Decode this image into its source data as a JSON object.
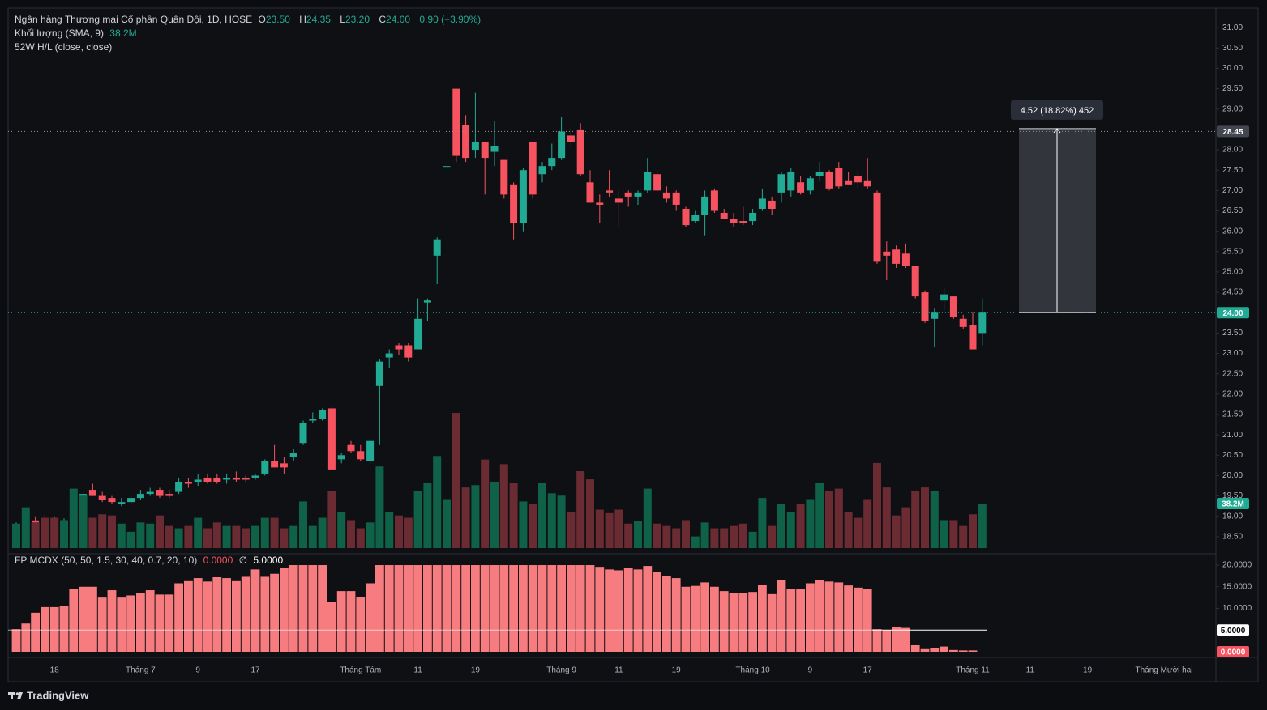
{
  "chart_data": [
    {
      "type": "candlestick",
      "title": "Ngân hàng Thương mại Cổ phần Quân Đội, 1D, HOSE",
      "header": [
        {
          "label": "O",
          "value": "23.50"
        },
        {
          "label": "H",
          "value": "24.35"
        },
        {
          "label": "L",
          "value": "23.20"
        },
        {
          "label": "C",
          "value": "24.00"
        }
      ],
      "change": "0.90 (+3.90%)",
      "study": "52W H/L (close, close)",
      "up_color": "#22ab94",
      "down_color": "#f7525f",
      "categories": [
        null,
        null,
        null,
        null,
        "18",
        null,
        null,
        null,
        null,
        null,
        null,
        null,
        null,
        "Tháng 7",
        null,
        null,
        null,
        null,
        null,
        "9",
        null,
        null,
        null,
        null,
        null,
        "17",
        null,
        null,
        null,
        null,
        null,
        null,
        null,
        null,
        null,
        null,
        "Tháng Tám",
        null,
        null,
        null,
        null,
        null,
        "11",
        null,
        null,
        null,
        null,
        null,
        "19",
        null,
        null,
        null,
        null,
        null,
        null,
        null,
        null,
        "Tháng 9",
        null,
        null,
        null,
        null,
        null,
        "11",
        null,
        null,
        null,
        null,
        null,
        "19",
        null,
        null,
        null,
        null,
        null,
        null,
        null,
        "Tháng 10",
        null,
        null,
        null,
        null,
        null,
        "9",
        null,
        null,
        null,
        null,
        null,
        "17",
        null,
        null,
        null,
        null,
        null,
        null,
        null,
        null,
        null,
        null,
        "Tháng 11",
        null,
        null,
        null,
        null,
        null,
        "11",
        null,
        null,
        null,
        null,
        null,
        "19",
        null,
        null,
        null,
        null,
        null,
        null,
        null,
        "Tháng Mười hai"
      ],
      "open": [
        18.7,
        18.8,
        18.9,
        18.95,
        18.9,
        18.8,
        18.85,
        19.3,
        19.65,
        19.5,
        19.45,
        19.3,
        19.35,
        19.45,
        19.55,
        19.65,
        19.55,
        19.6,
        19.85,
        19.85,
        19.95,
        19.95,
        19.9,
        19.95,
        19.95,
        19.95,
        20.05,
        20.35,
        20.3,
        20.45,
        20.8,
        21.35,
        21.4,
        21.65,
        20.4,
        20.75,
        20.6,
        20.35,
        22.2,
        22.9,
        23.2,
        23.2,
        23.1,
        24.25,
        25.4,
        27.6,
        29.5,
        28.6,
        28.0,
        28.2,
        27.95,
        27.75,
        27.15,
        26.2,
        28.2,
        27.4,
        27.6,
        27.8,
        28.35,
        28.5,
        27.2,
        26.7,
        27.0,
        26.8,
        26.95,
        26.85,
        27.0,
        27.4,
        26.95,
        26.95,
        26.55,
        26.25,
        26.4,
        27.0,
        26.45,
        26.3,
        26.25,
        26.25,
        26.55,
        26.75,
        26.95,
        27.0,
        27.2,
        27.0,
        27.35,
        27.45,
        27.55,
        27.25,
        27.35,
        27.25,
        26.95,
        25.5,
        25.55,
        25.45,
        25.15,
        24.5,
        23.85,
        24.3,
        24.4,
        23.85,
        23.7,
        23.5,
        null,
        null,
        null,
        null,
        null,
        null,
        null,
        null,
        null,
        null,
        null,
        null,
        null,
        null,
        null,
        null,
        null,
        null,
        null
      ],
      "high": [
        18.85,
        18.95,
        19.0,
        19.05,
        19.0,
        18.95,
        19.65,
        19.6,
        19.8,
        19.6,
        19.5,
        19.45,
        19.5,
        19.65,
        19.7,
        19.7,
        19.65,
        19.95,
        19.95,
        20.05,
        20.05,
        20.05,
        20.05,
        20.1,
        20.0,
        20.05,
        20.4,
        20.75,
        20.45,
        20.65,
        21.35,
        21.55,
        21.65,
        21.7,
        20.55,
        20.85,
        20.75,
        20.9,
        22.85,
        23.1,
        23.25,
        23.25,
        24.35,
        24.35,
        25.85,
        27.6,
        29.5,
        28.85,
        29.4,
        28.2,
        28.7,
        27.75,
        27.2,
        27.55,
        28.2,
        27.7,
        28.15,
        28.8,
        28.55,
        28.65,
        27.5,
        26.9,
        27.5,
        27.0,
        27.0,
        27.0,
        27.8,
        27.5,
        27.1,
        27.0,
        26.6,
        26.5,
        27.0,
        27.05,
        26.55,
        26.45,
        26.6,
        26.55,
        27.05,
        26.85,
        27.45,
        27.55,
        27.35,
        27.35,
        27.7,
        27.5,
        27.7,
        27.45,
        27.45,
        27.8,
        27.0,
        25.75,
        25.65,
        25.7,
        25.15,
        24.55,
        24.1,
        24.6,
        24.4,
        23.95,
        24.0,
        24.35,
        null,
        null,
        null,
        null,
        null,
        null,
        null,
        null,
        null,
        null,
        null,
        null,
        null,
        null,
        null,
        null,
        null,
        null,
        null
      ],
      "low": [
        18.6,
        18.7,
        18.75,
        18.8,
        18.75,
        18.7,
        18.8,
        19.25,
        19.5,
        19.35,
        19.3,
        19.25,
        19.3,
        19.4,
        19.5,
        19.45,
        19.45,
        19.55,
        19.7,
        19.75,
        19.8,
        19.8,
        19.8,
        19.85,
        19.85,
        19.9,
        20.0,
        20.2,
        20.05,
        20.35,
        20.75,
        21.3,
        21.35,
        20.15,
        20.3,
        20.55,
        20.35,
        20.3,
        20.75,
        22.65,
        22.95,
        22.8,
        23.1,
        23.8,
        24.7,
        27.6,
        27.7,
        27.7,
        27.8,
        26.9,
        27.6,
        26.8,
        25.8,
        26.0,
        26.8,
        27.2,
        27.5,
        27.75,
        28.1,
        27.35,
        26.7,
        26.2,
        26.85,
        26.1,
        26.6,
        26.65,
        26.95,
        26.95,
        26.7,
        26.5,
        26.1,
        26.2,
        25.9,
        26.45,
        26.3,
        26.1,
        26.15,
        26.15,
        26.5,
        26.4,
        26.7,
        26.85,
        26.9,
        26.9,
        27.25,
        27.0,
        27.05,
        27.15,
        27.05,
        27.05,
        25.2,
        24.8,
        25.1,
        25.1,
        24.35,
        23.75,
        23.15,
        24.05,
        23.85,
        23.6,
        23.1,
        23.2,
        null,
        null,
        null,
        null,
        null,
        null,
        null,
        null,
        null,
        null,
        null,
        null,
        null,
        null,
        null,
        null,
        null,
        null,
        null
      ],
      "close": [
        18.8,
        18.9,
        18.85,
        18.85,
        18.8,
        18.9,
        19.35,
        19.55,
        19.5,
        19.4,
        19.35,
        19.35,
        19.45,
        19.55,
        19.6,
        19.5,
        19.5,
        19.85,
        19.8,
        19.9,
        19.85,
        19.85,
        19.95,
        19.9,
        19.9,
        20.0,
        20.35,
        20.2,
        20.2,
        20.55,
        21.3,
        21.4,
        21.6,
        20.15,
        20.5,
        20.6,
        20.4,
        20.85,
        22.8,
        23.0,
        23.1,
        22.9,
        23.85,
        24.3,
        25.8,
        27.6,
        27.85,
        27.8,
        28.2,
        27.8,
        28.1,
        26.9,
        26.2,
        27.5,
        26.9,
        27.6,
        27.8,
        28.45,
        28.2,
        27.4,
        26.7,
        26.65,
        26.95,
        26.7,
        26.85,
        26.95,
        27.45,
        27.0,
        26.8,
        26.65,
        26.15,
        26.4,
        26.85,
        26.5,
        26.3,
        26.2,
        26.2,
        26.45,
        26.8,
        26.55,
        27.4,
        27.45,
        26.95,
        27.3,
        27.45,
        27.05,
        27.1,
        27.15,
        27.2,
        27.1,
        25.25,
        25.4,
        25.2,
        25.15,
        24.4,
        23.8,
        24.0,
        24.45,
        23.9,
        23.65,
        23.1,
        24.0,
        null,
        null,
        null,
        null,
        null,
        null,
        null,
        null,
        null,
        null,
        null,
        null,
        null,
        null,
        null,
        null,
        null,
        null,
        null
      ],
      "ylim": [
        18.16,
        31.48
      ],
      "yticks": [
        {
          "value": 18.5,
          "label": "18.50"
        },
        {
          "value": 19,
          "label": "19.00"
        },
        {
          "value": 19.5,
          "label": "19.50"
        },
        {
          "value": 20,
          "label": "20.00"
        },
        {
          "value": 20.5,
          "label": "20.50"
        },
        {
          "value": 21,
          "label": "21.00"
        },
        {
          "value": 21.5,
          "label": "21.50"
        },
        {
          "value": 22,
          "label": "22.00"
        },
        {
          "value": 22.5,
          "label": "22.50"
        },
        {
          "value": 23,
          "label": "23.00"
        },
        {
          "value": 23.5,
          "label": "23.50"
        },
        {
          "value": 24,
          "label": "24.00"
        },
        {
          "value": 24.5,
          "label": "24.50"
        },
        {
          "value": 25,
          "label": "25.00"
        },
        {
          "value": 25.5,
          "label": "25.50"
        },
        {
          "value": 26,
          "label": "26.00"
        },
        {
          "value": 26.5,
          "label": "26.50"
        },
        {
          "value": 27,
          "label": "27.00"
        },
        {
          "value": 27.5,
          "label": "27.50"
        },
        {
          "value": 28,
          "label": "28.00"
        },
        {
          "value": 28.5,
          "label": "28.50"
        },
        {
          "value": 29,
          "label": "29.00"
        },
        {
          "value": 29.5,
          "label": "29.50"
        },
        {
          "value": 30,
          "label": "30.00"
        },
        {
          "value": 30.5,
          "label": "30.50"
        },
        {
          "value": 31,
          "label": "31.00"
        }
      ],
      "price_lines": [
        {
          "value": 28.45,
          "label": "28.45",
          "color": "#9598a1",
          "badge": "#434651"
        },
        {
          "value": 24,
          "label": "24.00",
          "color": "#22ab94",
          "badge": "#22ab94"
        }
      ],
      "measure": {
        "from": 24.0,
        "to": 28.52,
        "label": "4.52 (18.82%) 452"
      }
    },
    {
      "type": "volume",
      "title": "Khối lượng (SMA, 9)",
      "up_color": "#0f6147",
      "down_color": "#6a2b33",
      "values": [
        21,
        35,
        22,
        26,
        26,
        24,
        51,
        45,
        26,
        29,
        28,
        21,
        14,
        22,
        21,
        28,
        19,
        17,
        19,
        26,
        17,
        22,
        19,
        19,
        17,
        19,
        26,
        26,
        17,
        19,
        40,
        19,
        26,
        49,
        31,
        24,
        17,
        22,
        70,
        31,
        28,
        26,
        49,
        56,
        79,
        42,
        116,
        52,
        54,
        76,
        57,
        72,
        56,
        40,
        38,
        56,
        47,
        45,
        31,
        66,
        59,
        33,
        30,
        33,
        21,
        23,
        51,
        21,
        19,
        17,
        24,
        10,
        22,
        17,
        17,
        19,
        21,
        14,
        43,
        19,
        38,
        31,
        38,
        42,
        56,
        49,
        51,
        31,
        26,
        42,
        73,
        52,
        28,
        35,
        49,
        52,
        49,
        24,
        24,
        19,
        29,
        38.2
      ],
      "last_value_label": "38.2M"
    },
    {
      "type": "bar",
      "title": "FP MCDX (50, 50, 1.5, 30, 40, 0.7, 20, 10)",
      "color": "#f77c80",
      "values": [
        5.2,
        6.5,
        9.0,
        10.3,
        10.3,
        10.6,
        14.4,
        15.0,
        15.0,
        12.5,
        14.2,
        12.5,
        13.0,
        13.5,
        14.2,
        13.2,
        13.2,
        15.8,
        16.3,
        17.0,
        16.2,
        17.2,
        17.0,
        16.3,
        17.3,
        19.0,
        17.3,
        18.0,
        19.4,
        20,
        20,
        20,
        20,
        11.5,
        14.0,
        14.0,
        12.7,
        15.8,
        20,
        20,
        20,
        20,
        20,
        20,
        20,
        20,
        20,
        20,
        20,
        20,
        20,
        20,
        20,
        20,
        20,
        20,
        20,
        20,
        20,
        20,
        20,
        19.6,
        19.0,
        18.8,
        19.3,
        19.0,
        19.8,
        18.5,
        17.5,
        17.0,
        15.0,
        15.2,
        16.0,
        15.0,
        14.0,
        13.5,
        13.5,
        13.8,
        15.5,
        13.3,
        16.5,
        14.5,
        14.5,
        15.8,
        16.5,
        16.2,
        16.0,
        15.3,
        14.8,
        14.5,
        5.2,
        5.0,
        5.8,
        5.5,
        1.5,
        0.6,
        0.8,
        1.2,
        0.4,
        0.3,
        0.3,
        0
      ],
      "last_value_label": "0.0000",
      "null_symbol": "∅",
      "threshold": {
        "value": 5,
        "label": "5.0000"
      },
      "ylim": [
        -1.31,
        21.5
      ],
      "yticks": [
        {
          "value": 10,
          "label": "10.0000"
        },
        {
          "value": 15,
          "label": "15.0000"
        },
        {
          "value": 20,
          "label": "20.0000"
        }
      ]
    }
  ],
  "footer": "TradingView"
}
